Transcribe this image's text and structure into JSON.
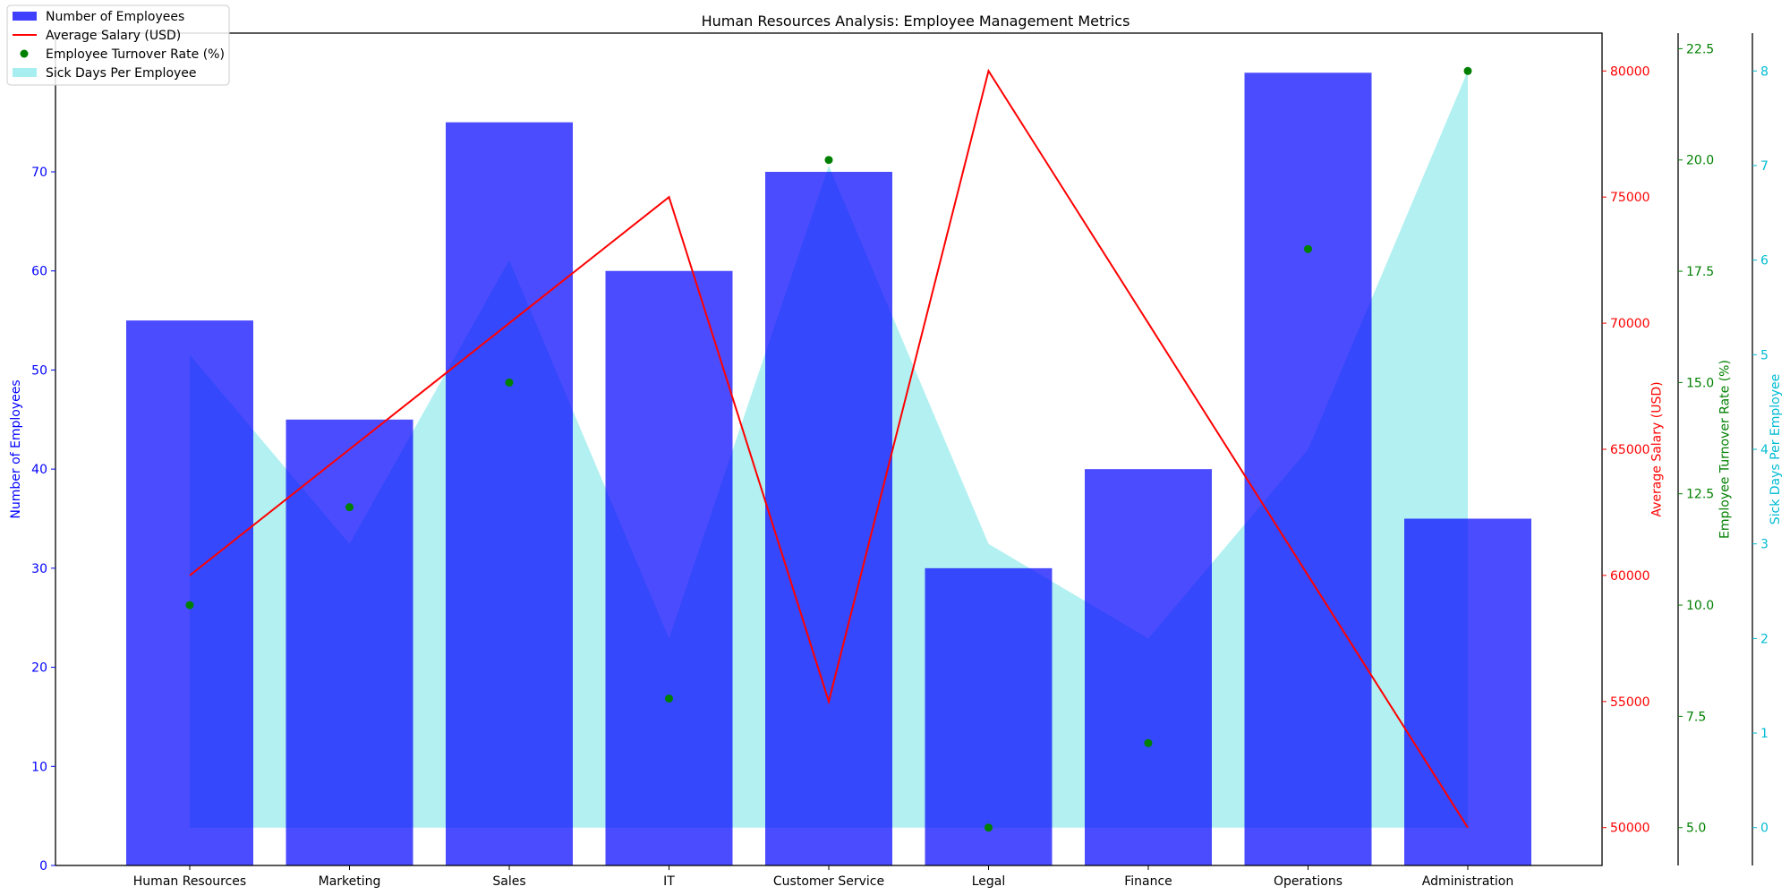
{
  "chart_data": {
    "type": "bar",
    "title": "Human Resources Analysis: Employee Management Metrics",
    "categories": [
      "Human Resources",
      "Marketing",
      "Sales",
      "IT",
      "Customer Service",
      "Legal",
      "Finance",
      "Operations",
      "Administration"
    ],
    "series": [
      {
        "name": "Number of Employees",
        "type": "bar",
        "axis": "Number of Employees",
        "values": [
          55,
          45,
          75,
          60,
          70,
          30,
          40,
          80,
          35
        ],
        "color": "#0000ff",
        "opacity": 0.7
      },
      {
        "name": "Average Salary (USD)",
        "type": "line",
        "axis": "Average Salary (USD)",
        "values": [
          60000,
          65000,
          70000,
          75000,
          55000,
          80000,
          70000,
          60000,
          50000
        ],
        "color": "#ff0000"
      },
      {
        "name": "Employee Turnover Rate (%)",
        "type": "scatter",
        "axis": "Employee Turnover Rate (%)",
        "values": [
          10,
          12.2,
          15,
          7.9,
          20,
          5,
          6.9,
          18,
          22
        ],
        "color": "#008000"
      },
      {
        "name": "Sick Days Per Employee",
        "type": "area",
        "axis": "Sick Days Per Employee",
        "values": [
          5,
          3,
          6,
          2,
          7,
          3,
          2,
          4,
          8
        ],
        "color": "#00ced1",
        "opacity": 0.3
      }
    ],
    "axes": [
      {
        "label": "Number of Employees",
        "side": "left",
        "range": [
          0,
          84
        ],
        "ticks": [
          0,
          10,
          20,
          30,
          40,
          50,
          60,
          70
        ],
        "tick_labels": [
          "0",
          "10",
          "20",
          "30",
          "40",
          "50",
          "60",
          "70"
        ],
        "color": "#0000ff"
      },
      {
        "label": "Average Salary (USD)",
        "side": "right",
        "range": [
          48500,
          81500
        ],
        "ticks": [
          50000,
          55000,
          60000,
          65000,
          70000,
          75000,
          80000
        ],
        "tick_labels": [
          "50000",
          "55000",
          "60000",
          "65000",
          "70000",
          "75000",
          "80000"
        ],
        "color": "#ff0000"
      },
      {
        "label": "Employee Turnover Rate (%)",
        "side": "right",
        "range": [
          4.15,
          22.85
        ],
        "ticks": [
          5,
          7.5,
          10,
          12.5,
          15,
          17.5,
          20,
          22.5
        ],
        "tick_labels": [
          "5.0",
          "7.5",
          "10.0",
          "12.5",
          "15.0",
          "17.5",
          "20.0",
          "22.5"
        ],
        "color": "#008000"
      },
      {
        "label": "Sick Days Per Employee",
        "side": "right",
        "range": [
          -0.4,
          8.4
        ],
        "ticks": [
          0,
          1,
          2,
          3,
          4,
          5,
          6,
          7,
          8
        ],
        "tick_labels": [
          "0",
          "1",
          "2",
          "3",
          "4",
          "5",
          "6",
          "7",
          "8"
        ],
        "color": "#00bcd4"
      }
    ],
    "legend": "top-left",
    "grid": false
  }
}
